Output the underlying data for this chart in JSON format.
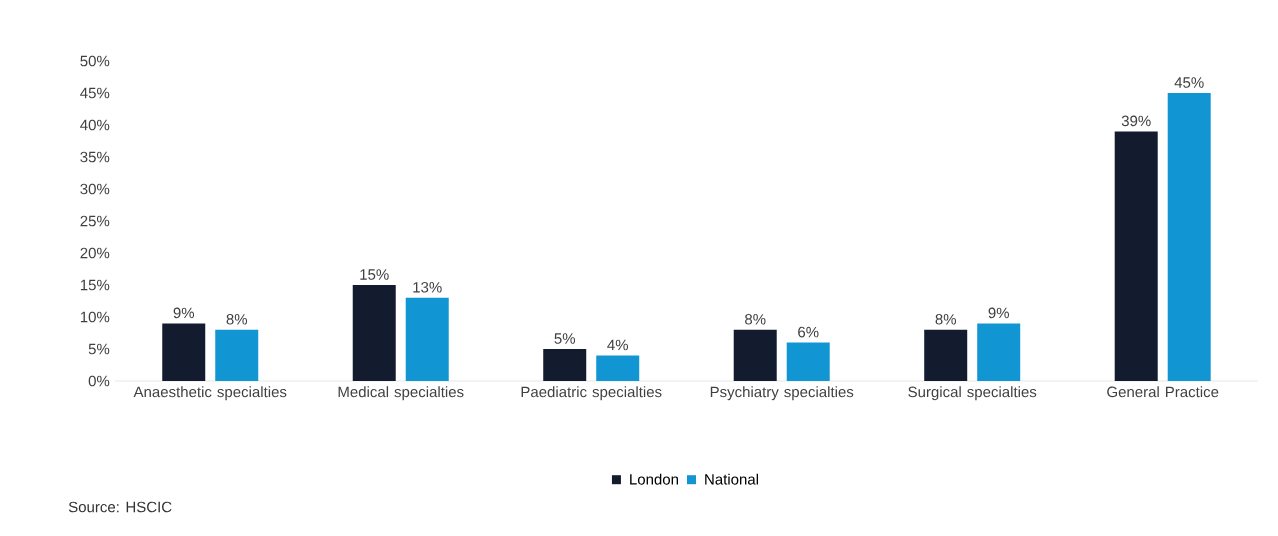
{
  "chart_data": {
    "type": "bar",
    "categories": [
      "Anaesthetic specialties",
      "Medical specialties",
      "Paediatric specialties",
      "Psychiatry specialties",
      "Surgical specialties",
      "General Practice"
    ],
    "series": [
      {
        "name": "London",
        "color": "#121c2e",
        "values": [
          9,
          15,
          5,
          8,
          8,
          39
        ],
        "value_labels": [
          "9%",
          "15%",
          "5%",
          "8%",
          "8%",
          "39%"
        ]
      },
      {
        "name": "National",
        "color": "#1196d3",
        "values": [
          8,
          13,
          4,
          6,
          9,
          45
        ],
        "value_labels": [
          "8%",
          "13%",
          "4%",
          "6%",
          "9%",
          "45%"
        ]
      }
    ],
    "ylim": [
      0,
      50
    ],
    "yticks": [
      {
        "value": 0,
        "label": "0%"
      },
      {
        "value": 5,
        "label": "5%"
      },
      {
        "value": 10,
        "label": "10%"
      },
      {
        "value": 15,
        "label": "15%"
      },
      {
        "value": 20,
        "label": "20%"
      },
      {
        "value": 25,
        "label": "25%"
      },
      {
        "value": 30,
        "label": "30%"
      },
      {
        "value": 35,
        "label": "35%"
      },
      {
        "value": 40,
        "label": "40%"
      },
      {
        "value": 45,
        "label": "45%"
      },
      {
        "value": 50,
        "label": "50%"
      }
    ],
    "legend": "bottom",
    "grid": false,
    "annotations": [
      "Source: HSCIC"
    ]
  }
}
